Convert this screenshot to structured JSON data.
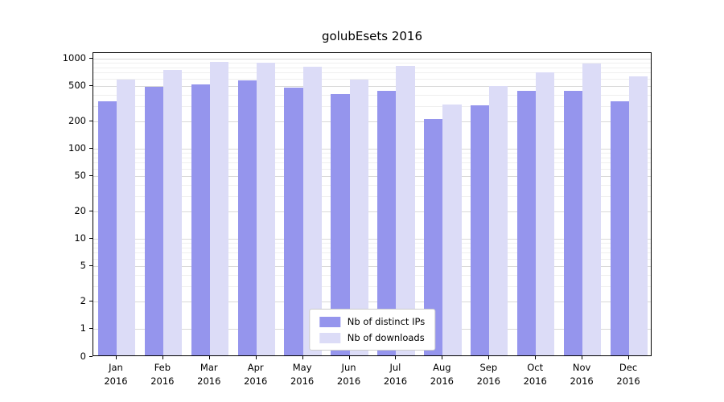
{
  "chart_data": {
    "type": "bar",
    "title": "golubEsets 2016",
    "x_year": "2016",
    "categories": [
      "Jan",
      "Feb",
      "Mar",
      "Apr",
      "May",
      "Jun",
      "Jul",
      "Aug",
      "Sep",
      "Oct",
      "Nov",
      "Dec"
    ],
    "series": [
      {
        "name": "Nb of distinct IPs",
        "color": "#9595ed",
        "values": [
          325,
          465,
          500,
          555,
          455,
          385,
          420,
          205,
          290,
          420,
          420,
          325
        ]
      },
      {
        "name": "Nb of downloads",
        "color": "#dcdcf7",
        "values": [
          560,
          720,
          880,
          860,
          775,
          560,
          800,
          295,
          480,
          670,
          845,
          610
        ]
      }
    ],
    "yscale": "symlog",
    "yticks": [
      0,
      1,
      2,
      5,
      10,
      20,
      50,
      100,
      200,
      500,
      1000
    ],
    "minor_yticks": [
      3,
      4,
      6,
      7,
      8,
      9,
      30,
      40,
      60,
      70,
      80,
      90,
      300,
      400,
      600,
      700,
      800,
      900
    ],
    "ylim": [
      0,
      1100
    ],
    "grid": true,
    "legend_position": "lower center"
  },
  "colors": {
    "grid_major": "#d9d9d9",
    "grid_minor": "#efefef",
    "axis": "#000000",
    "background": "#ffffff"
  }
}
